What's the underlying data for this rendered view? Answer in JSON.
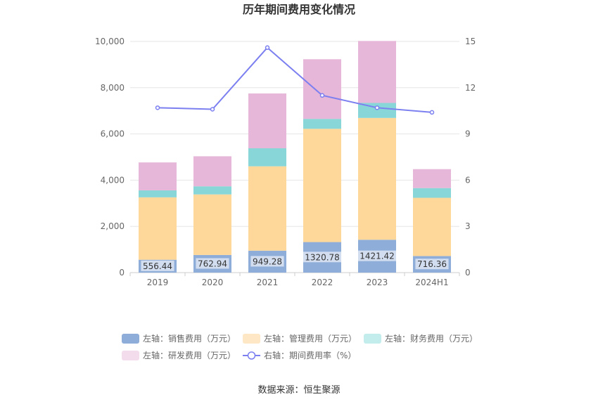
{
  "title": "历年期间费用变化情况",
  "source": "数据来源：恒生聚源",
  "colors": {
    "sales": "#8eadd9",
    "admin": "#fed89a",
    "finance": "#88d6d8",
    "rd": "#e6b7d8",
    "rate": "#7b7ff0",
    "grid": "#e6e6e6",
    "axis": "#cccccc",
    "legend_admin": "#fde7c4",
    "legend_finance": "#c3ecec",
    "legend_rd": "#f3dcec"
  },
  "chart_data": {
    "type": "bar",
    "stacked": true,
    "categories": [
      "2019",
      "2020",
      "2021",
      "2022",
      "2023",
      "2024H1"
    ],
    "series": [
      {
        "name": "左轴：销售费用（万元）",
        "axis": "left",
        "values": [
          556.44,
          762.94,
          949.28,
          1320.78,
          1421.42,
          716.36
        ]
      },
      {
        "name": "左轴：管理费用（万元）",
        "axis": "left",
        "values": [
          2700,
          2620,
          3650,
          4900,
          5270,
          2520
        ]
      },
      {
        "name": "左轴：财务费用（万元）",
        "axis": "left",
        "values": [
          300,
          350,
          780,
          430,
          650,
          420
        ]
      },
      {
        "name": "左轴：研发费用（万元）",
        "axis": "left",
        "values": [
          1210,
          1300,
          2370,
          2580,
          2680,
          820
        ]
      },
      {
        "name": "右轴：期间费用率（%）",
        "axis": "right",
        "type": "line",
        "values": [
          10.7,
          10.6,
          14.6,
          11.5,
          10.7,
          10.4
        ]
      }
    ],
    "y_left": {
      "min": 0,
      "max": 10000,
      "ticks": [
        "0",
        "2,000",
        "4,000",
        "6,000",
        "8,000",
        "10,000"
      ],
      "tick_values": [
        0,
        2000,
        4000,
        6000,
        8000,
        10000
      ]
    },
    "y_right": {
      "min": 0,
      "max": 15,
      "ticks": [
        "0",
        "3",
        "6",
        "9",
        "12",
        "15"
      ],
      "tick_values": [
        0,
        3,
        6,
        9,
        12,
        15
      ]
    },
    "bar_labels": [
      "556.44",
      "762.94",
      "949.28",
      "1320.78",
      "1421.42",
      "716.36"
    ],
    "grid": true,
    "legend_position": "bottom"
  }
}
